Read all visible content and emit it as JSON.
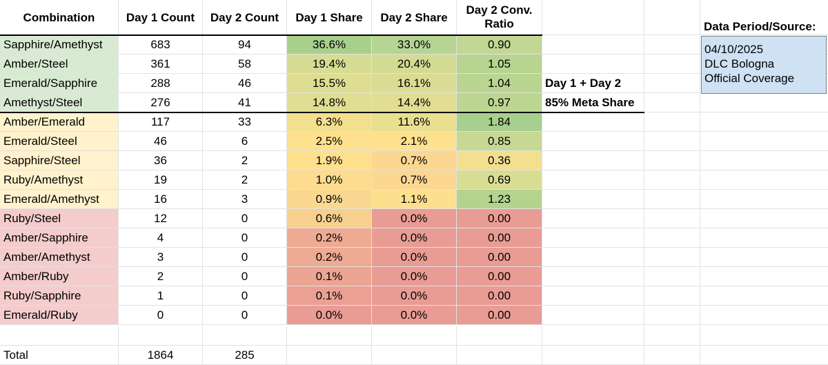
{
  "headers": {
    "combination": "Combination",
    "day1_count": "Day 1 Count",
    "day2_count": "Day 2 Count",
    "day1_share": "Day 1 Share",
    "day2_share": "Day 2 Share",
    "conv_ratio_line1": "Day 2 Conv.",
    "conv_ratio_line2": "Ratio"
  },
  "rows": [
    {
      "name": "Sapphire/Amethyst",
      "d1": "683",
      "d2": "94",
      "s1": "36.6%",
      "s2": "33.0%",
      "r": "0.90",
      "tier": "top",
      "s1c": "#a8d08d",
      "s2c": "#b6d494",
      "rc": "#c2d794"
    },
    {
      "name": "Amber/Steel",
      "d1": "361",
      "d2": "58",
      "s1": "19.4%",
      "s2": "20.4%",
      "r": "1.05",
      "tier": "top",
      "s1c": "#d6dc93",
      "s2c": "#d3db93",
      "rc": "#b8d491"
    },
    {
      "name": "Emerald/Sapphire",
      "d1": "288",
      "d2": "46",
      "s1": "15.5%",
      "s2": "16.1%",
      "r": "1.04",
      "tier": "top",
      "s1c": "#dedd92",
      "s2c": "#dbdc93",
      "rc": "#bad592"
    },
    {
      "name": "Amethyst/Steel",
      "d1": "276",
      "d2": "41",
      "s1": "14.8%",
      "s2": "14.4%",
      "r": "0.97",
      "tier": "top",
      "s1c": "#e0de92",
      "s2c": "#e1de92",
      "rc": "#bdd592"
    },
    {
      "name": "Amber/Emerald",
      "d1": "117",
      "d2": "33",
      "s1": "6.3%",
      "s2": "11.6%",
      "r": "1.84",
      "tier": "mid",
      "s1c": "#f3e08f",
      "s2c": "#e8df91",
      "rc": "#a7cf8d"
    },
    {
      "name": "Emerald/Steel",
      "d1": "46",
      "d2": "6",
      "s1": "2.5%",
      "s2": "2.1%",
      "r": "0.85",
      "tier": "mid",
      "s1c": "#fde18e",
      "s2c": "#fde18e",
      "rc": "#c7d893"
    },
    {
      "name": "Sapphire/Steel",
      "d1": "36",
      "d2": "2",
      "s1": "1.9%",
      "s2": "0.7%",
      "r": "0.36",
      "tier": "mid",
      "s1c": "#fee08e",
      "s2c": "#fbd792",
      "rc": "#f3e08f"
    },
    {
      "name": "Ruby/Amethyst",
      "d1": "19",
      "d2": "2",
      "s1": "1.0%",
      "s2": "0.7%",
      "r": "0.69",
      "tier": "mid",
      "s1c": "#fddb8f",
      "s2c": "#fbd792",
      "rc": "#d9dc93"
    },
    {
      "name": "Emerald/Amethyst",
      "d1": "16",
      "d2": "3",
      "s1": "0.9%",
      "s2": "1.1%",
      "r": "1.23",
      "tier": "mid",
      "s1c": "#fbd891",
      "s2c": "#fde08e",
      "rc": "#b3d38f"
    },
    {
      "name": "Ruby/Steel",
      "d1": "12",
      "d2": "0",
      "s1": "0.6%",
      "s2": "0.0%",
      "r": "0.00",
      "tier": "low",
      "s1c": "#f7d090",
      "s2c": "#e99c94",
      "rc": "#e99c94"
    },
    {
      "name": "Amber/Sapphire",
      "d1": "4",
      "d2": "0",
      "s1": "0.2%",
      "s2": "0.0%",
      "r": "0.00",
      "tier": "low",
      "s1c": "#eeaa92",
      "s2c": "#e99c94",
      "rc": "#e99c94"
    },
    {
      "name": "Amber/Amethyst",
      "d1": "3",
      "d2": "0",
      "s1": "0.2%",
      "s2": "0.0%",
      "r": "0.00",
      "tier": "low",
      "s1c": "#eeaa92",
      "s2c": "#e99c94",
      "rc": "#e99c94"
    },
    {
      "name": "Amber/Ruby",
      "d1": "2",
      "d2": "0",
      "s1": "0.1%",
      "s2": "0.0%",
      "r": "0.00",
      "tier": "low",
      "s1c": "#eca593",
      "s2c": "#e99c94",
      "rc": "#e99c94"
    },
    {
      "name": "Ruby/Sapphire",
      "d1": "1",
      "d2": "0",
      "s1": "0.1%",
      "s2": "0.0%",
      "r": "0.00",
      "tier": "low",
      "s1c": "#eaa194",
      "s2c": "#e99c94",
      "rc": "#e99c94"
    },
    {
      "name": "Emerald/Ruby",
      "d1": "0",
      "d2": "0",
      "s1": "0.0%",
      "s2": "0.0%",
      "r": "0.00",
      "tier": "low",
      "s1c": "#e99c94",
      "s2c": "#e99c94",
      "rc": "#e99c94"
    }
  ],
  "total": {
    "label": "Total",
    "d1": "1864",
    "d2": "285"
  },
  "note": {
    "line1": "Day 1 + Day 2",
    "line2": "85% Meta Share"
  },
  "source": {
    "title": "Data Period/Source:",
    "line1": "04/10/2025",
    "line2": "DLC Bologna",
    "line3": "Official Coverage"
  },
  "tier_colors": {
    "top": "#d9ead3",
    "mid": "#fff2cc",
    "low": "#f4cccc"
  }
}
